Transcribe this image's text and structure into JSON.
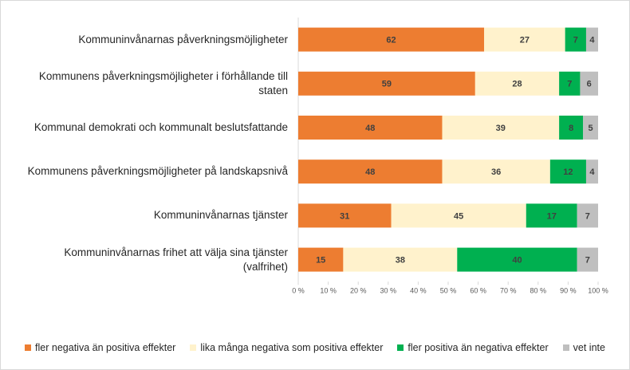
{
  "chart_data": {
    "type": "stacked-bar-horizontal",
    "categories": [
      "Kommuninvånarnas påverkningsmöjligheter",
      "Kommunens påverkningsmöjligheter i förhållande till staten",
      "Kommunal demokrati och kommunalt beslutsfattande",
      "Kommunens påverkningsmöjligheter på landskapsnivå",
      "Kommuninvånarnas tjänster",
      "Kommuninvånarnas frihet att välja sina tjänster (valfrihet)"
    ],
    "series": [
      {
        "name": "fler negativa än positiva effekter",
        "color": "#ed7d31",
        "values": [
          62,
          59,
          48,
          48,
          31,
          15
        ]
      },
      {
        "name": "lika många negativa som positiva effekter",
        "color": "#fff2cc",
        "values": [
          27,
          28,
          39,
          36,
          45,
          38
        ]
      },
      {
        "name": "fler positiva än negativa effekter",
        "color": "#00b050",
        "values": [
          7,
          7,
          8,
          12,
          17,
          40
        ]
      },
      {
        "name": "vet inte",
        "color": "#bfbfbf",
        "values": [
          4,
          6,
          5,
          4,
          7,
          7
        ]
      }
    ],
    "xlim": [
      0,
      100
    ],
    "xticks": [
      {
        "value": 0,
        "label": "0 %"
      },
      {
        "value": 10,
        "label": "10 %"
      },
      {
        "value": 20,
        "label": "20 %"
      },
      {
        "value": 30,
        "label": "30 %"
      },
      {
        "value": 40,
        "label": "40 %"
      },
      {
        "value": 50,
        "label": "50 %"
      },
      {
        "value": 60,
        "label": "60 %"
      },
      {
        "value": 70,
        "label": "70 %"
      },
      {
        "value": 80,
        "label": "80 %"
      },
      {
        "value": 90,
        "label": "90 %"
      },
      {
        "value": 100,
        "label": "100 %"
      }
    ],
    "legend": "bottom"
  }
}
